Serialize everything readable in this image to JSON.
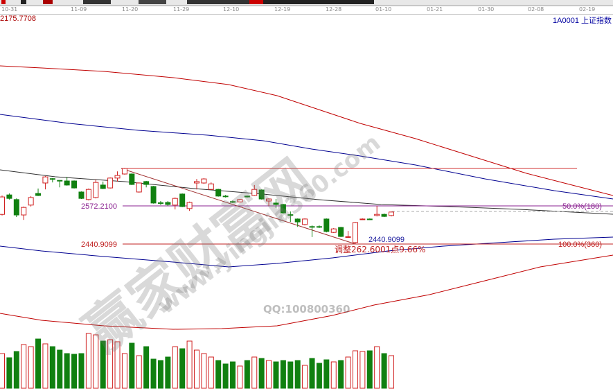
{
  "toolbar": {
    "icons": [
      "toolbar-icons"
    ]
  },
  "date_axis": [
    "10-31",
    "11-09",
    "11-20",
    "11-29",
    "12-10",
    "12-19",
    "12-28",
    "01-10",
    "01-21",
    "01-30",
    "02-08",
    "02-19"
  ],
  "header": {
    "max_value": "2175.7708",
    "symbol": "1A0001 上证指数"
  },
  "annotations": {
    "level_high_label": "2572.2100",
    "level_low_label": "2440.9099",
    "low_point_label": "2440.9099",
    "fib_50": "50.0%(180)",
    "fib_100": "100.0%(360)",
    "adjust_text": "调整262.6001点9.66%"
  },
  "watermark": {
    "site_cn": "赢家财富网",
    "site_url": "www.yingjia360.com",
    "qq": "QQ:100800360"
  },
  "colors": {
    "up": "#d02020",
    "down": "#108010",
    "ma_red": "#c00000",
    "ma_blue": "#000090",
    "ma_black": "#303030",
    "level": "#8a2090"
  },
  "chart_data": {
    "type": "candlestick",
    "fields": [
      "open",
      "close",
      "high",
      "low"
    ],
    "candles": [
      [
        2543,
        2603,
        2608,
        2539
      ],
      [
        2610,
        2598,
        2615,
        2594
      ],
      [
        2594,
        2541,
        2598,
        2534
      ],
      [
        2541,
        2567,
        2570,
        2524
      ],
      [
        2575,
        2601,
        2606,
        2570
      ],
      [
        2615,
        2608,
        2632,
        2606
      ],
      [
        2651,
        2672,
        2675,
        2629
      ],
      [
        2666,
        2665,
        2668,
        2653
      ],
      [
        2660,
        2659,
        2661,
        2636
      ],
      [
        2658,
        2644,
        2672,
        2642
      ],
      [
        2658,
        2634,
        2660,
        2632
      ],
      [
        2620,
        2598,
        2622,
        2596
      ],
      [
        2594,
        2629,
        2632,
        2591
      ],
      [
        2601,
        2653,
        2663,
        2598
      ],
      [
        2644,
        2632,
        2656,
        2630
      ],
      [
        2634,
        2668,
        2670,
        2632
      ],
      [
        2668,
        2677,
        2691,
        2656
      ],
      [
        2682,
        2701,
        2703,
        2680
      ],
      [
        2682,
        2646,
        2684,
        2644
      ],
      [
        2620,
        2651,
        2653,
        2618
      ],
      [
        2656,
        2646,
        2658,
        2636
      ],
      [
        2639,
        2582,
        2641,
        2580
      ],
      [
        2583,
        2582,
        2589,
        2575
      ],
      [
        2584,
        2577,
        2589,
        2572
      ],
      [
        2575,
        2598,
        2601,
        2560
      ],
      [
        2613,
        2570,
        2615,
        2568
      ],
      [
        2563,
        2584,
        2587,
        2555
      ],
      [
        2651,
        2656,
        2665,
        2629
      ],
      [
        2651,
        2665,
        2668,
        2648
      ],
      [
        2629,
        2648,
        2653,
        2627
      ],
      [
        2629,
        2606,
        2631,
        2604
      ],
      [
        2606,
        2605,
        2610,
        2601
      ],
      [
        2587,
        2586,
        2591,
        2582
      ],
      [
        2586,
        2594,
        2596,
        2584
      ],
      [
        2606,
        2603,
        2608,
        2601
      ],
      [
        2608,
        2629,
        2644,
        2606
      ],
      [
        2627,
        2596,
        2629,
        2594
      ],
      [
        2589,
        2596,
        2598,
        2572
      ],
      [
        2582,
        2577,
        2596,
        2565
      ],
      [
        2577,
        2548,
        2579,
        2546
      ],
      [
        2542,
        2541,
        2553,
        2517
      ],
      [
        2527,
        2517,
        2529,
        2500
      ],
      [
        2508,
        2527,
        2529,
        2505
      ],
      [
        2501,
        2500,
        2505,
        2465
      ],
      [
        2501,
        2500,
        2505,
        2496
      ],
      [
        2527,
        2484,
        2529,
        2481
      ],
      [
        2481,
        2493,
        2496,
        2479
      ],
      [
        2498,
        2467,
        2500,
        2465
      ],
      [
        2465,
        2466,
        2486,
        2462
      ],
      [
        2446,
        2515,
        2517,
        2441
      ],
      [
        2526,
        2527,
        2529,
        2524
      ],
      [
        2527,
        2526,
        2529,
        2524
      ],
      [
        2539,
        2543,
        2572,
        2536
      ],
      [
        2543,
        2536,
        2546,
        2534
      ],
      [
        2539,
        2551,
        2553,
        2536
      ]
    ],
    "volume_relative": [
      50,
      44,
      53,
      63,
      60,
      71,
      64,
      60,
      55,
      50,
      49,
      50,
      79,
      77,
      68,
      70,
      67,
      50,
      65,
      47,
      60,
      42,
      40,
      45,
      60,
      57,
      68,
      55,
      50,
      45,
      40,
      35,
      38,
      32,
      40,
      45,
      43,
      40,
      38,
      40,
      38,
      40,
      33,
      43,
      36,
      41,
      38,
      40,
      45,
      54,
      53,
      54,
      60,
      50,
      47
    ],
    "levels": {
      "high": 2701,
      "upper": 2572.21,
      "lower": 2440.9099
    }
  }
}
